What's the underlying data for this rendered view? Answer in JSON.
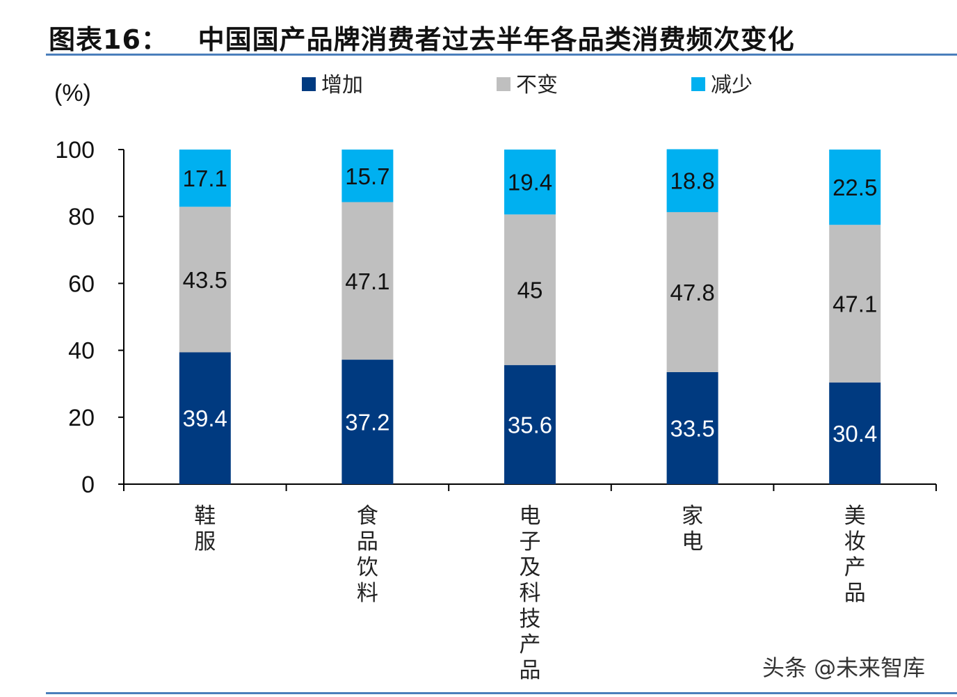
{
  "title": "图表16：   中国国产品牌消费者过去半年各品类消费频次变化",
  "watermark": "头条 @未来智库",
  "colors": {
    "increase": "#003a80",
    "unchanged": "#bfbfbf",
    "decrease": "#00b0f0",
    "rule": "#4a7ebb"
  },
  "chart_data": {
    "type": "bar",
    "stacked": true,
    "ylabel": "(%)",
    "ylim": [
      0,
      100
    ],
    "yticks": [
      0,
      20,
      40,
      60,
      80,
      100
    ],
    "grid": false,
    "legend_position": "top",
    "categories": [
      "鞋服",
      "食品饮料",
      "电子及科技产品",
      "家电",
      "美妆产品"
    ],
    "series": [
      {
        "name": "增加",
        "values": [
          39.4,
          37.2,
          35.6,
          33.5,
          30.4
        ]
      },
      {
        "name": "不变",
        "values": [
          43.5,
          47.1,
          45,
          47.8,
          47.1
        ]
      },
      {
        "name": "减少",
        "values": [
          17.1,
          15.7,
          19.4,
          18.8,
          22.5
        ]
      }
    ]
  }
}
